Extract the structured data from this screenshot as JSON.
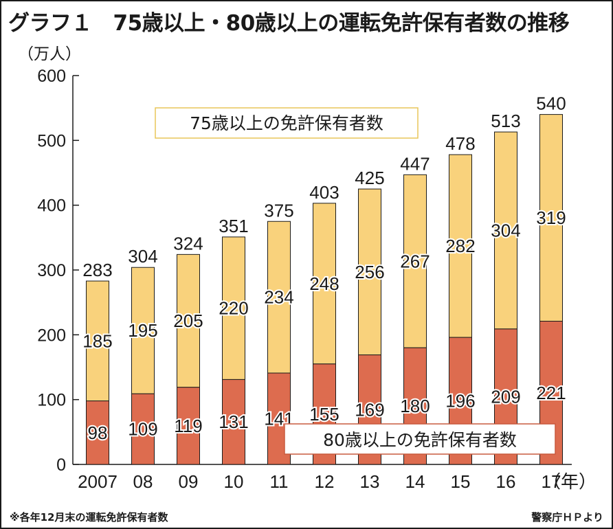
{
  "title": "グラフ１　75歳以上・80歳以上の運転免許保有者数の推移",
  "footnote": "※各年12月末の運転免許保有者数",
  "source": "警察庁ＨＰより",
  "colors": {
    "over75": "#f9d27c",
    "over80": "#dd6c4f",
    "axis": "#1a1a1a"
  },
  "chart_data": {
    "type": "bar",
    "stacked": true,
    "categories": [
      "2007",
      "08",
      "09",
      "10",
      "11",
      "12",
      "13",
      "14",
      "15",
      "16",
      "17"
    ],
    "x_unit": "（年）",
    "y_unit": "（万人）",
    "ylim": [
      0,
      600
    ],
    "yticks": [
      "0",
      "100",
      "200",
      "300",
      "400",
      "500",
      "600"
    ],
    "grid": false,
    "series": [
      {
        "name": "80歳以上の免許保有者数",
        "values": [
          98,
          109,
          119,
          131,
          141,
          155,
          169,
          180,
          196,
          209,
          221
        ]
      },
      {
        "name": "75歳以上の免許保有者数",
        "segment_labels": [
          185,
          195,
          205,
          220,
          234,
          248,
          256,
          267,
          282,
          304,
          319
        ]
      }
    ],
    "totals": [
      283,
      304,
      324,
      351,
      375,
      403,
      425,
      447,
      478,
      513,
      540
    ]
  }
}
